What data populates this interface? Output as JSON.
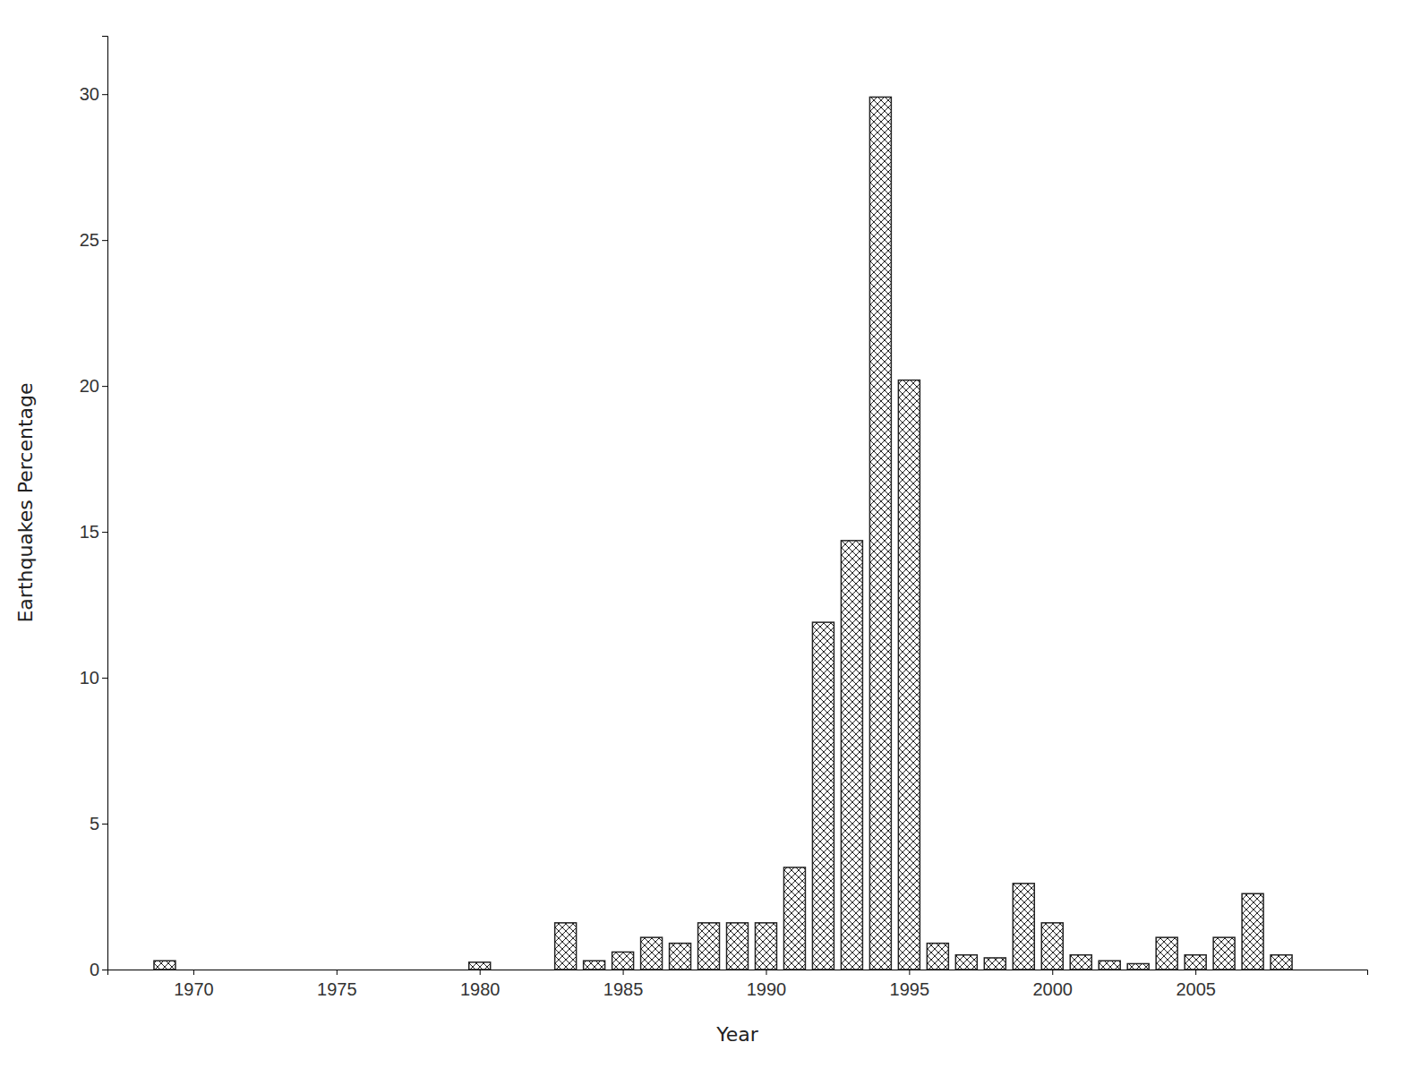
{
  "chart_data": {
    "type": "bar",
    "xlabel": "Year",
    "ylabel": "Earthquakes Percentage",
    "x": [
      1969,
      1970,
      1971,
      1972,
      1973,
      1974,
      1975,
      1976,
      1977,
      1978,
      1979,
      1980,
      1981,
      1982,
      1983,
      1984,
      1985,
      1986,
      1987,
      1988,
      1989,
      1990,
      1991,
      1992,
      1993,
      1994,
      1995,
      1996,
      1997,
      1998,
      1999,
      2000,
      2001,
      2002,
      2003,
      2004,
      2005,
      2006,
      2007,
      2008,
      2009
    ],
    "values": [
      0.3,
      0.0,
      0.0,
      0.0,
      0.0,
      0.0,
      0.0,
      0.0,
      0.0,
      0.0,
      0.0,
      0.25,
      0.0,
      0.0,
      1.6,
      0.3,
      0.6,
      1.1,
      0.9,
      1.6,
      1.6,
      1.6,
      3.5,
      11.9,
      14.7,
      29.9,
      20.2,
      0.9,
      0.5,
      0.4,
      2.95,
      1.6,
      0.5,
      0.3,
      0.2,
      1.1,
      0.5,
      1.1,
      2.6,
      0.5,
      0.0
    ],
    "color": "white",
    "xlim": [
      1967.0,
      2011.0
    ],
    "xticks": [
      1970,
      1975,
      1980,
      1985,
      1990,
      1995,
      2000,
      2005
    ],
    "ylim": [
      0,
      32
    ],
    "yticks": [
      0,
      5,
      10,
      15,
      20,
      25,
      30
    ]
  }
}
